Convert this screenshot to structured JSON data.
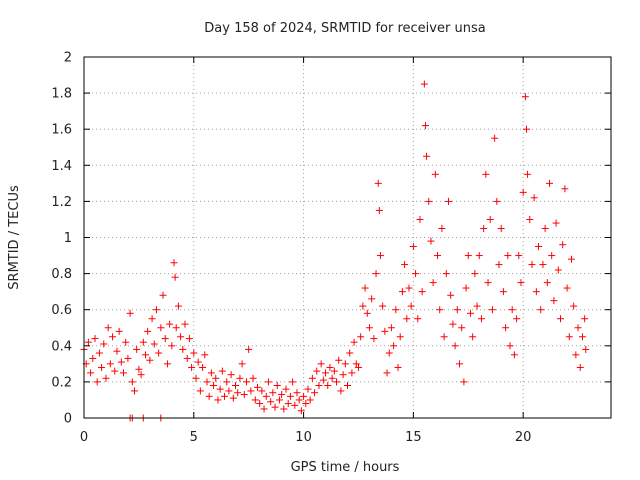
{
  "chart_data": {
    "type": "scatter",
    "title": "Day 158 of 2024, SRMTID for receiver unsa",
    "xlabel": "GPS time / hours",
    "ylabel": "SRMTID / TECUs",
    "xlim": [
      0,
      24
    ],
    "ylim": [
      0,
      2
    ],
    "xticks": [
      {
        "value": 0,
        "label": "0"
      },
      {
        "value": 5,
        "label": "5"
      },
      {
        "value": 10,
        "label": "10"
      },
      {
        "value": 15,
        "label": "15"
      },
      {
        "value": 20,
        "label": "20"
      }
    ],
    "yticks": [
      {
        "value": 0,
        "label": "0"
      },
      {
        "value": 0.2,
        "label": "0.2"
      },
      {
        "value": 0.4,
        "label": "0.4"
      },
      {
        "value": 0.6,
        "label": "0.6"
      },
      {
        "value": 0.8,
        "label": "0.8"
      },
      {
        "value": 1.0,
        "label": "1"
      },
      {
        "value": 1.2,
        "label": "1.2"
      },
      {
        "value": 1.4,
        "label": "1.4"
      },
      {
        "value": 1.6,
        "label": "1.6"
      },
      {
        "value": 1.8,
        "label": "1.8"
      },
      {
        "value": 2.0,
        "label": "2"
      }
    ],
    "grid": true,
    "marker": "+",
    "color": "#ff0000",
    "series": [
      {
        "name": "unsa",
        "points": [
          [
            0.0,
            0.38
          ],
          [
            0.1,
            0.3
          ],
          [
            0.2,
            0.42
          ],
          [
            0.3,
            0.25
          ],
          [
            0.4,
            0.33
          ],
          [
            0.5,
            0.44
          ],
          [
            0.6,
            0.2
          ],
          [
            0.7,
            0.36
          ],
          [
            0.8,
            0.28
          ],
          [
            0.9,
            0.41
          ],
          [
            1.0,
            0.22
          ],
          [
            1.1,
            0.5
          ],
          [
            1.2,
            0.3
          ],
          [
            1.3,
            0.45
          ],
          [
            1.4,
            0.26
          ],
          [
            1.5,
            0.37
          ],
          [
            1.6,
            0.48
          ],
          [
            1.7,
            0.31
          ],
          [
            1.8,
            0.25
          ],
          [
            1.9,
            0.42
          ],
          [
            2.0,
            0.33
          ],
          [
            2.1,
            0.58
          ],
          [
            2.2,
            0.2
          ],
          [
            2.3,
            0.15
          ],
          [
            2.4,
            0.38
          ],
          [
            2.5,
            0.27
          ],
          [
            2.6,
            0.24
          ],
          [
            2.7,
            0.42
          ],
          [
            2.8,
            0.35
          ],
          [
            2.9,
            0.48
          ],
          [
            3.0,
            0.32
          ],
          [
            3.1,
            0.55
          ],
          [
            3.2,
            0.41
          ],
          [
            3.3,
            0.6
          ],
          [
            3.4,
            0.36
          ],
          [
            3.5,
            0.5
          ],
          [
            3.6,
            0.68
          ],
          [
            3.7,
            0.44
          ],
          [
            3.8,
            0.3
          ],
          [
            3.9,
            0.52
          ],
          [
            4.0,
            0.4
          ],
          [
            4.1,
            0.86
          ],
          [
            4.15,
            0.78
          ],
          [
            4.2,
            0.5
          ],
          [
            4.3,
            0.62
          ],
          [
            4.4,
            0.45
          ],
          [
            4.5,
            0.38
          ],
          [
            4.6,
            0.52
          ],
          [
            4.7,
            0.33
          ],
          [
            4.8,
            0.44
          ],
          [
            4.9,
            0.28
          ],
          [
            5.0,
            0.36
          ],
          [
            5.1,
            0.22
          ],
          [
            5.2,
            0.31
          ],
          [
            5.3,
            0.15
          ],
          [
            5.4,
            0.28
          ],
          [
            5.5,
            0.35
          ],
          [
            5.6,
            0.2
          ],
          [
            5.7,
            0.12
          ],
          [
            5.8,
            0.25
          ],
          [
            5.9,
            0.18
          ],
          [
            6.0,
            0.22
          ],
          [
            6.1,
            0.1
          ],
          [
            6.2,
            0.16
          ],
          [
            6.3,
            0.26
          ],
          [
            6.4,
            0.12
          ],
          [
            6.5,
            0.2
          ],
          [
            6.6,
            0.15
          ],
          [
            6.7,
            0.24
          ],
          [
            6.8,
            0.11
          ],
          [
            6.9,
            0.18
          ],
          [
            7.0,
            0.14
          ],
          [
            7.1,
            0.22
          ],
          [
            7.2,
            0.3
          ],
          [
            7.3,
            0.13
          ],
          [
            7.4,
            0.2
          ],
          [
            7.5,
            0.38
          ],
          [
            7.6,
            0.15
          ],
          [
            7.7,
            0.22
          ],
          [
            7.8,
            0.1
          ],
          [
            7.9,
            0.17
          ],
          [
            8.0,
            0.08
          ],
          [
            8.1,
            0.15
          ],
          [
            8.2,
            0.05
          ],
          [
            8.3,
            0.12
          ],
          [
            8.4,
            0.2
          ],
          [
            8.5,
            0.09
          ],
          [
            8.6,
            0.14
          ],
          [
            8.7,
            0.06
          ],
          [
            8.8,
            0.18
          ],
          [
            8.9,
            0.1
          ],
          [
            9.0,
            0.13
          ],
          [
            9.1,
            0.05
          ],
          [
            9.2,
            0.16
          ],
          [
            9.3,
            0.08
          ],
          [
            9.4,
            0.12
          ],
          [
            9.5,
            0.2
          ],
          [
            9.6,
            0.07
          ],
          [
            9.7,
            0.14
          ],
          [
            9.8,
            0.1
          ],
          [
            9.9,
            0.04
          ],
          [
            10.0,
            0.12
          ],
          [
            10.1,
            0.08
          ],
          [
            10.2,
            0.16
          ],
          [
            10.3,
            0.1
          ],
          [
            10.4,
            0.22
          ],
          [
            10.5,
            0.14
          ],
          [
            10.6,
            0.26
          ],
          [
            10.7,
            0.18
          ],
          [
            10.8,
            0.3
          ],
          [
            10.9,
            0.21
          ],
          [
            11.0,
            0.25
          ],
          [
            11.1,
            0.18
          ],
          [
            11.2,
            0.28
          ],
          [
            11.3,
            0.22
          ],
          [
            11.4,
            0.26
          ],
          [
            11.5,
            0.2
          ],
          [
            11.6,
            0.32
          ],
          [
            11.7,
            0.15
          ],
          [
            11.8,
            0.24
          ],
          [
            11.9,
            0.3
          ],
          [
            12.0,
            0.18
          ],
          [
            12.1,
            0.36
          ],
          [
            12.2,
            0.25
          ],
          [
            12.3,
            0.42
          ],
          [
            12.4,
            0.3
          ],
          [
            12.5,
            0.28
          ],
          [
            12.6,
            0.45
          ],
          [
            12.7,
            0.62
          ],
          [
            12.8,
            0.72
          ],
          [
            12.9,
            0.58
          ],
          [
            13.0,
            0.5
          ],
          [
            13.1,
            0.66
          ],
          [
            13.2,
            0.44
          ],
          [
            13.3,
            0.8
          ],
          [
            13.4,
            1.3
          ],
          [
            13.45,
            1.15
          ],
          [
            13.5,
            0.9
          ],
          [
            13.6,
            0.62
          ],
          [
            13.7,
            0.48
          ],
          [
            13.8,
            0.25
          ],
          [
            13.9,
            0.36
          ],
          [
            14.0,
            0.5
          ],
          [
            14.1,
            0.4
          ],
          [
            14.2,
            0.6
          ],
          [
            14.3,
            0.28
          ],
          [
            14.4,
            0.45
          ],
          [
            14.5,
            0.7
          ],
          [
            14.6,
            0.85
          ],
          [
            14.7,
            0.55
          ],
          [
            14.8,
            0.72
          ],
          [
            14.9,
            0.62
          ],
          [
            15.0,
            0.95
          ],
          [
            15.1,
            0.8
          ],
          [
            15.2,
            0.55
          ],
          [
            15.3,
            1.1
          ],
          [
            15.4,
            0.7
          ],
          [
            15.5,
            1.85
          ],
          [
            15.55,
            1.62
          ],
          [
            15.6,
            1.45
          ],
          [
            15.7,
            1.2
          ],
          [
            15.8,
            0.98
          ],
          [
            15.9,
            0.75
          ],
          [
            16.0,
            1.35
          ],
          [
            16.1,
            0.9
          ],
          [
            16.2,
            0.6
          ],
          [
            16.3,
            1.05
          ],
          [
            16.4,
            0.45
          ],
          [
            16.5,
            0.8
          ],
          [
            16.6,
            1.2
          ],
          [
            16.7,
            0.68
          ],
          [
            16.8,
            0.52
          ],
          [
            16.9,
            0.4
          ],
          [
            17.0,
            0.6
          ],
          [
            17.1,
            0.3
          ],
          [
            17.2,
            0.5
          ],
          [
            17.3,
            0.2
          ],
          [
            17.4,
            0.72
          ],
          [
            17.5,
            0.9
          ],
          [
            17.6,
            0.58
          ],
          [
            17.7,
            0.45
          ],
          [
            17.8,
            0.8
          ],
          [
            17.9,
            0.62
          ],
          [
            18.0,
            0.9
          ],
          [
            18.1,
            0.55
          ],
          [
            18.2,
            1.05
          ],
          [
            18.3,
            1.35
          ],
          [
            18.4,
            0.75
          ],
          [
            18.5,
            1.1
          ],
          [
            18.6,
            0.6
          ],
          [
            18.7,
            1.55
          ],
          [
            18.8,
            1.2
          ],
          [
            18.9,
            0.85
          ],
          [
            19.0,
            1.05
          ],
          [
            19.1,
            0.7
          ],
          [
            19.2,
            0.5
          ],
          [
            19.3,
            0.9
          ],
          [
            19.4,
            0.4
          ],
          [
            19.5,
            0.6
          ],
          [
            19.6,
            0.35
          ],
          [
            19.7,
            0.55
          ],
          [
            19.8,
            0.9
          ],
          [
            19.9,
            0.75
          ],
          [
            20.0,
            1.25
          ],
          [
            20.1,
            1.78
          ],
          [
            20.15,
            1.6
          ],
          [
            20.2,
            1.35
          ],
          [
            20.3,
            1.1
          ],
          [
            20.4,
            0.85
          ],
          [
            20.5,
            1.22
          ],
          [
            20.6,
            0.7
          ],
          [
            20.7,
            0.95
          ],
          [
            20.8,
            0.6
          ],
          [
            20.9,
            0.85
          ],
          [
            21.0,
            1.05
          ],
          [
            21.1,
            0.75
          ],
          [
            21.2,
            1.3
          ],
          [
            21.3,
            0.9
          ],
          [
            21.4,
            0.65
          ],
          [
            21.5,
            1.08
          ],
          [
            21.6,
            0.82
          ],
          [
            21.7,
            0.55
          ],
          [
            21.8,
            0.96
          ],
          [
            21.9,
            1.27
          ],
          [
            22.0,
            0.72
          ],
          [
            22.1,
            0.45
          ],
          [
            22.2,
            0.88
          ],
          [
            22.3,
            0.62
          ],
          [
            22.4,
            0.35
          ],
          [
            22.5,
            0.5
          ],
          [
            22.6,
            0.28
          ],
          [
            22.7,
            0.45
          ],
          [
            22.8,
            0.55
          ],
          [
            22.85,
            0.38
          ],
          [
            2.1,
            0.0
          ],
          [
            2.2,
            0.0
          ],
          [
            2.7,
            0.0
          ],
          [
            3.5,
            0.0
          ]
        ]
      }
    ]
  }
}
